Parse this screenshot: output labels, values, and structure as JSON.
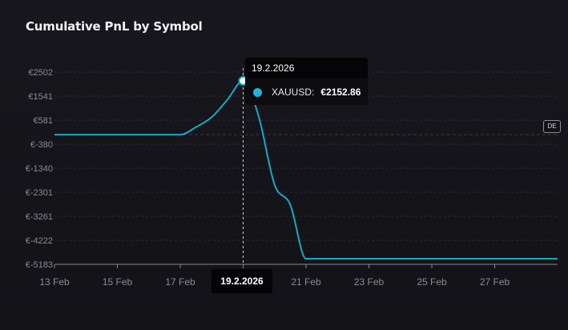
{
  "chart_data": {
    "type": "line",
    "title": "Cumulative PnL by Symbol",
    "xlabel": "",
    "ylabel": "",
    "x": [
      "2026-02-13",
      "2026-02-14",
      "2026-02-15",
      "2026-02-16",
      "2026-02-17",
      "2026-02-17T12:00",
      "2026-02-18",
      "2026-02-18T12:00",
      "2026-02-19",
      "2026-02-19T12:00",
      "2026-02-20",
      "2026-02-20T12:00",
      "2026-02-21",
      "2026-02-22",
      "2026-02-23",
      "2026-02-24",
      "2026-02-25",
      "2026-02-26",
      "2026-02-27",
      "2026-02-28",
      "2026-03-01"
    ],
    "series": [
      {
        "name": "XAUUSD",
        "color": "#1aa8c6",
        "values": [
          0,
          0,
          0,
          0,
          0,
          300,
          700,
          1400,
          2152.86,
          700,
          -2000,
          -2800,
          -4960,
          -4960,
          -4960,
          -4960,
          -4960,
          -4960,
          -4960,
          -4960,
          -4960
        ]
      }
    ],
    "y_ticks": [
      2502,
      1541,
      581,
      -380,
      -1340,
      -2301,
      -3261,
      -4222,
      -5183
    ],
    "y_tick_labels": [
      "€2502",
      "€1541",
      "€581",
      "€-380",
      "€-1340",
      "€-2301",
      "€-3261",
      "€-4222",
      "€-5183"
    ],
    "x_tick_labels": [
      "13 Feb",
      "15 Feb",
      "17 Feb",
      "19 Feb",
      "21 Feb",
      "23 Feb",
      "25 Feb",
      "27 Feb"
    ],
    "x_tick_dates": [
      "2026-02-13",
      "2026-02-15",
      "2026-02-17",
      "2026-02-19",
      "2026-02-21",
      "2026-02-23",
      "2026-02-25",
      "2026-02-27"
    ],
    "ylim": [
      -5183,
      2502
    ],
    "xlim": [
      "2026-02-13",
      "2026-03-01"
    ],
    "grid": true,
    "legend": "none"
  },
  "tooltip": {
    "date": "19.2.2026",
    "symbol": "XAUUSD:",
    "value": "€2152.86",
    "hover_date": "2026-02-19",
    "hover_value": 2152.86
  },
  "crosshair_label": "19.2.2026",
  "badge": "DE"
}
